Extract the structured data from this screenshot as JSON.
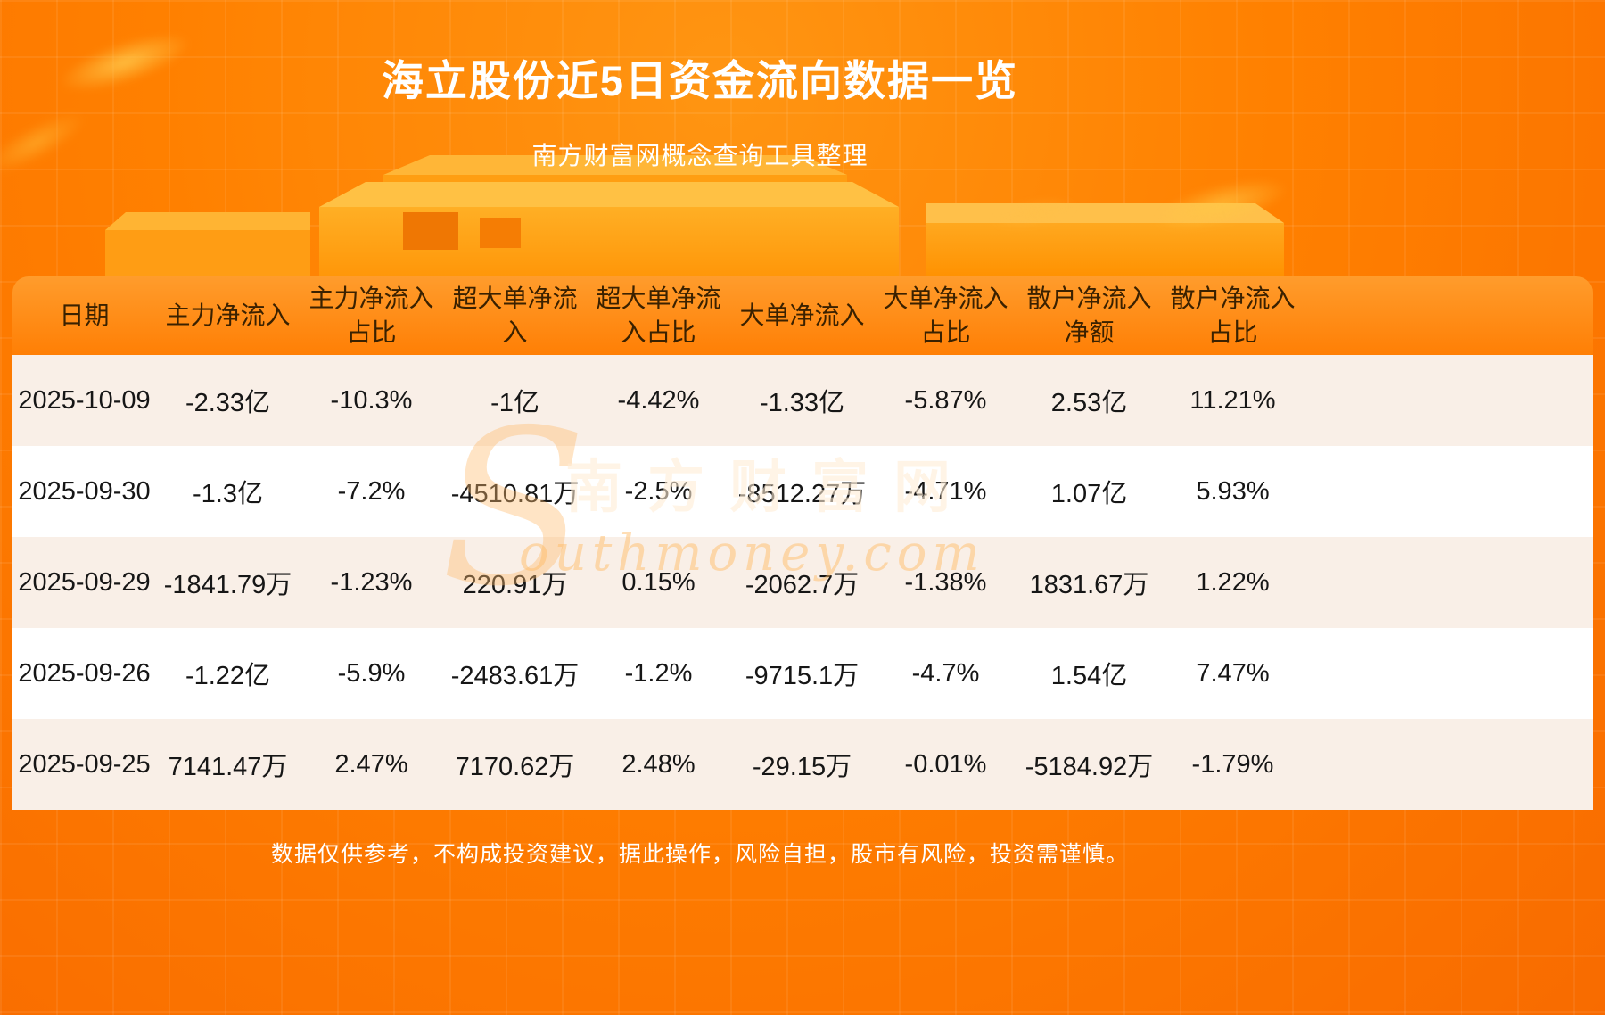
{
  "page": {
    "title": "海立股份近5日资金流向数据一览",
    "subtitle": "南方财富网概念查询工具整理",
    "disclaimer": "数据仅供参考，不构成投资建议，据此操作，风险自担，股市有风险，投资需谨慎。",
    "watermark": {
      "initial": "S",
      "cn": "南方财富网",
      "en_rest": "outhmoney.com"
    }
  },
  "chart_data": {
    "type": "table",
    "title": "海立股份近5日资金流向数据一览",
    "columns": [
      "日期",
      "主力净流入",
      "主力净流入占比",
      "超大单净流入",
      "超大单净流入占比",
      "大单净流入",
      "大单净流入占比",
      "散户净流入净额",
      "散户净流入占比"
    ],
    "rows": [
      [
        "2025-10-09",
        "-2.33亿",
        "-10.3%",
        "-1亿",
        "-4.42%",
        "-1.33亿",
        "-5.87%",
        "2.53亿",
        "11.21%"
      ],
      [
        "2025-09-30",
        "-1.3亿",
        "-7.2%",
        "-4510.81万",
        "-2.5%",
        "-8512.27万",
        "-4.71%",
        "1.07亿",
        "5.93%"
      ],
      [
        "2025-09-29",
        "-1841.79万",
        "-1.23%",
        "220.91万",
        "0.15%",
        "-2062.7万",
        "-1.38%",
        "1831.67万",
        "1.22%"
      ],
      [
        "2025-09-26",
        "-1.22亿",
        "-5.9%",
        "-2483.61万",
        "-1.2%",
        "-9715.1万",
        "-4.7%",
        "1.54亿",
        "7.47%"
      ],
      [
        "2025-09-25",
        "7141.47万",
        "2.47%",
        "7170.62万",
        "2.48%",
        "-29.15万",
        "-0.01%",
        "-5184.92万",
        "-1.79%"
      ]
    ]
  },
  "colors": {
    "background_orange": "#ff8000",
    "header_row_orange": "#ff8f1c",
    "row_beige": "#f9efe7",
    "row_white": "#ffffff",
    "header_text": "#3a2100",
    "body_text": "#161616",
    "title_text": "#ffffff"
  }
}
